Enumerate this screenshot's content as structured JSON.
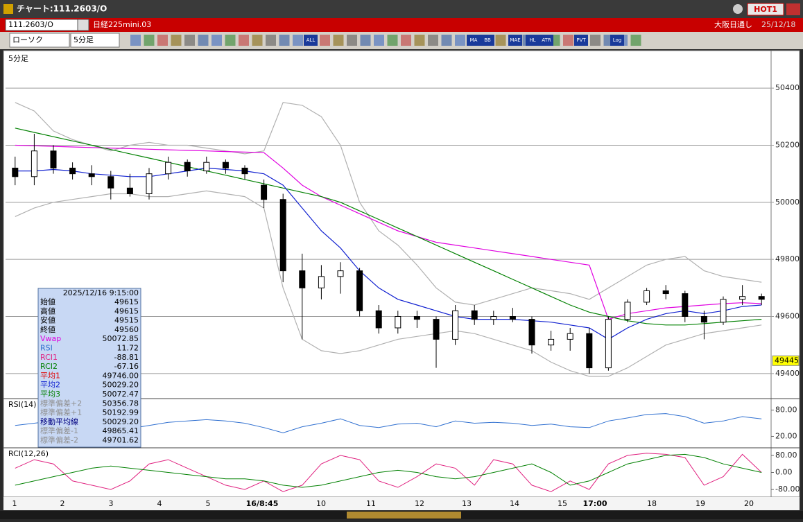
{
  "window": {
    "title": "チャート:111.2603/O",
    "hot": "HOT1"
  },
  "symbol_bar": {
    "code": "111.2603/O",
    "name": "日経225mini.03",
    "session": "大阪日通し",
    "date": "25/12/18"
  },
  "toolbar": {
    "chart_type": "ローソク",
    "interval": "5分足",
    "icon_labels": [
      "ALL",
      "MA",
      "BB",
      "MAE",
      "HL",
      "ATR",
      "PVT",
      "Log"
    ]
  },
  "chart_data": [
    {
      "type": "candlestick",
      "title": "5分足",
      "x_labels": [
        "1",
        "2",
        "3",
        "4",
        "5",
        "16/8:45",
        "10",
        "11",
        "12",
        "13",
        "14",
        "15",
        "17:00",
        "18",
        "19",
        "20"
      ],
      "open": [
        50120,
        50090,
        50180,
        50120,
        50100,
        50090,
        50050,
        50030,
        50100,
        50140,
        50110,
        50140,
        50120,
        50060,
        50010,
        49760,
        49700,
        49740,
        49760,
        49620,
        49560,
        49600,
        49590,
        49520,
        49620,
        49590,
        49600,
        49590,
        49500,
        49520,
        49540,
        49420,
        49590,
        49650,
        49690,
        49680,
        49600,
        49580,
        49660,
        49670
      ],
      "high": [
        50160,
        50240,
        50200,
        50140,
        50130,
        50110,
        50100,
        50120,
        50160,
        50150,
        50160,
        50150,
        50130,
        50080,
        50030,
        49820,
        49780,
        49790,
        49770,
        49640,
        49620,
        49620,
        49600,
        49640,
        49640,
        49620,
        49630,
        49600,
        49550,
        49560,
        49560,
        49600,
        49660,
        49700,
        49710,
        49690,
        49620,
        49670,
        49710,
        49680
      ],
      "low": [
        50060,
        50060,
        50100,
        50080,
        50060,
        50010,
        50020,
        50010,
        50080,
        50090,
        50100,
        50100,
        50080,
        49980,
        49720,
        49520,
        49660,
        49680,
        49600,
        49540,
        49540,
        49560,
        49420,
        49500,
        49570,
        49570,
        49580,
        49470,
        49480,
        49480,
        49400,
        49410,
        49580,
        49640,
        49660,
        49580,
        49520,
        49570,
        49640,
        49640
      ],
      "close": [
        50090,
        50180,
        50120,
        50100,
        50090,
        50050,
        50030,
        50100,
        50140,
        50110,
        50140,
        50120,
        50100,
        50010,
        49760,
        49700,
        49740,
        49760,
        49620,
        49560,
        49600,
        49590,
        49520,
        49620,
        49590,
        49600,
        49590,
        49500,
        49520,
        49540,
        49420,
        49590,
        49650,
        49690,
        49680,
        49600,
        49580,
        49660,
        49670,
        49660
      ],
      "series": [
        {
          "color": "#b0b0b0",
          "values": [
            50350,
            50320,
            50250,
            50220,
            50200,
            50180,
            50200,
            50210,
            50200,
            50200,
            50190,
            50180,
            50170,
            50180,
            50350,
            50340,
            50300,
            50200,
            50000,
            49900,
            49850,
            49780,
            49700,
            49650,
            49640,
            49660,
            49680,
            49700,
            49690,
            49680,
            49660,
            49700,
            49740,
            49780,
            49800,
            49810,
            49760,
            49740,
            49730,
            49720
          ]
        },
        {
          "color": "#b0b0b0",
          "values": [
            49950,
            49980,
            50000,
            50010,
            50020,
            50030,
            50030,
            50020,
            50020,
            50030,
            50040,
            50030,
            50020,
            49980,
            49700,
            49520,
            49480,
            49470,
            49480,
            49500,
            49520,
            49530,
            49540,
            49550,
            49540,
            49520,
            49500,
            49480,
            49440,
            49410,
            49390,
            49390,
            49420,
            49460,
            49500,
            49520,
            49540,
            49550,
            49560,
            49570
          ]
        },
        {
          "color": "#e000e0",
          "values": [
            50200,
            50198,
            50196,
            50194,
            50192,
            50190,
            50188,
            50186,
            50184,
            50182,
            50180,
            50178,
            50176,
            50174,
            50120,
            50060,
            50020,
            49990,
            49960,
            49930,
            49900,
            49880,
            49860,
            49850,
            49840,
            49830,
            49820,
            49810,
            49800,
            49790,
            49780,
            49590,
            49610,
            49620,
            49630,
            49635,
            49640,
            49645,
            49648,
            49645
          ]
        },
        {
          "color": "#008000",
          "values": [
            50260,
            50245,
            50230,
            50215,
            50200,
            50185,
            50170,
            50155,
            50140,
            50125,
            50110,
            50095,
            50080,
            50065,
            50050,
            50035,
            50020,
            50000,
            49970,
            49940,
            49910,
            49880,
            49850,
            49820,
            49790,
            49760,
            49730,
            49700,
            49670,
            49640,
            49615,
            49600,
            49585,
            49575,
            49570,
            49570,
            49575,
            49580,
            49585,
            49590
          ]
        },
        {
          "color": "#1020d0",
          "values": [
            50110,
            50110,
            50115,
            50110,
            50100,
            50095,
            50090,
            50090,
            50100,
            50110,
            50120,
            50115,
            50110,
            50100,
            50060,
            49980,
            49900,
            49840,
            49760,
            49700,
            49660,
            49640,
            49620,
            49600,
            49590,
            49590,
            49590,
            49585,
            49580,
            49570,
            49560,
            49520,
            49560,
            49590,
            49610,
            49620,
            49610,
            49620,
            49635,
            49640
          ]
        }
      ],
      "ylim": [
        49317,
        50483
      ],
      "yticks": [
        49400,
        49600,
        49800,
        50000,
        50200,
        50400
      ],
      "last_price": 49445,
      "grid": true
    },
    {
      "type": "line",
      "title": "RSI(14)",
      "color": "#3070d0",
      "values": [
        45,
        50,
        55,
        48,
        50,
        42,
        38,
        45,
        52,
        55,
        58,
        55,
        50,
        40,
        28,
        42,
        50,
        60,
        45,
        40,
        48,
        50,
        42,
        55,
        50,
        52,
        50,
        45,
        48,
        42,
        40,
        55,
        62,
        70,
        72,
        65,
        50,
        55,
        65,
        60
      ],
      "ylim": [
        -3,
        103
      ],
      "yticks": [
        {
          "value": 80,
          "label": "80.00"
        },
        {
          "value": 20,
          "label": "20.00"
        }
      ]
    },
    {
      "type": "line",
      "title": "RCI(12,26)",
      "series": [
        {
          "color": "#e0207f",
          "values": [
            20,
            60,
            40,
            -40,
            -60,
            -80,
            -40,
            40,
            60,
            20,
            -20,
            -60,
            -80,
            -40,
            -90,
            -60,
            40,
            80,
            60,
            -40,
            -70,
            -20,
            40,
            20,
            -60,
            60,
            40,
            -60,
            -90,
            -40,
            -80,
            40,
            80,
            90,
            85,
            70,
            -60,
            -20,
            85,
            0
          ]
        },
        {
          "color": "#008000",
          "values": [
            -60,
            -40,
            -20,
            0,
            20,
            30,
            20,
            10,
            0,
            -10,
            -20,
            -30,
            -30,
            -40,
            -60,
            -70,
            -60,
            -40,
            -20,
            0,
            10,
            0,
            -20,
            -30,
            -20,
            0,
            20,
            40,
            0,
            -60,
            -40,
            0,
            40,
            60,
            80,
            85,
            70,
            40,
            20,
            0
          ]
        }
      ],
      "ylim": [
        -109,
        109
      ],
      "yticks": [
        {
          "value": 80,
          "label": "80.00"
        },
        {
          "value": 0,
          "label": "0.00"
        },
        {
          "value": -80,
          "label": "-80.00"
        }
      ]
    }
  ],
  "info": {
    "datetime": "2025/12/16 9:15:00",
    "rows": [
      {
        "label": "始値",
        "value": "49615",
        "color": "#000000"
      },
      {
        "label": "高値",
        "value": "49615",
        "color": "#000000"
      },
      {
        "label": "安値",
        "value": "49515",
        "color": "#000000"
      },
      {
        "label": "終値",
        "value": "49560",
        "color": "#000000"
      },
      {
        "label": "Vwap",
        "value": "50072.85",
        "color": "#e000e0"
      },
      {
        "label": "RSI",
        "value": "11.72",
        "color": "#3070d0"
      },
      {
        "label": "RCI1",
        "value": "-88.81",
        "color": "#e0207f"
      },
      {
        "label": "RCI2",
        "value": "-67.16",
        "color": "#008000"
      },
      {
        "label": "平均1",
        "value": "49746.00",
        "color": "#e00000"
      },
      {
        "label": "平均2",
        "value": "50029.20",
        "color": "#1020d0"
      },
      {
        "label": "平均3",
        "value": "50072.47",
        "color": "#008000"
      },
      {
        "label": "標準偏差+2",
        "value": "50356.78",
        "color": "#909090"
      },
      {
        "label": "標準偏差+1",
        "value": "50192.99",
        "color": "#909090"
      },
      {
        "label": "移動平均線",
        "value": "50029.20",
        "color": "#000080"
      },
      {
        "label": "標準偏差-1",
        "value": "49865.41",
        "color": "#909090"
      },
      {
        "label": "標準偏差-2",
        "value": "49701.62",
        "color": "#909090"
      }
    ]
  }
}
